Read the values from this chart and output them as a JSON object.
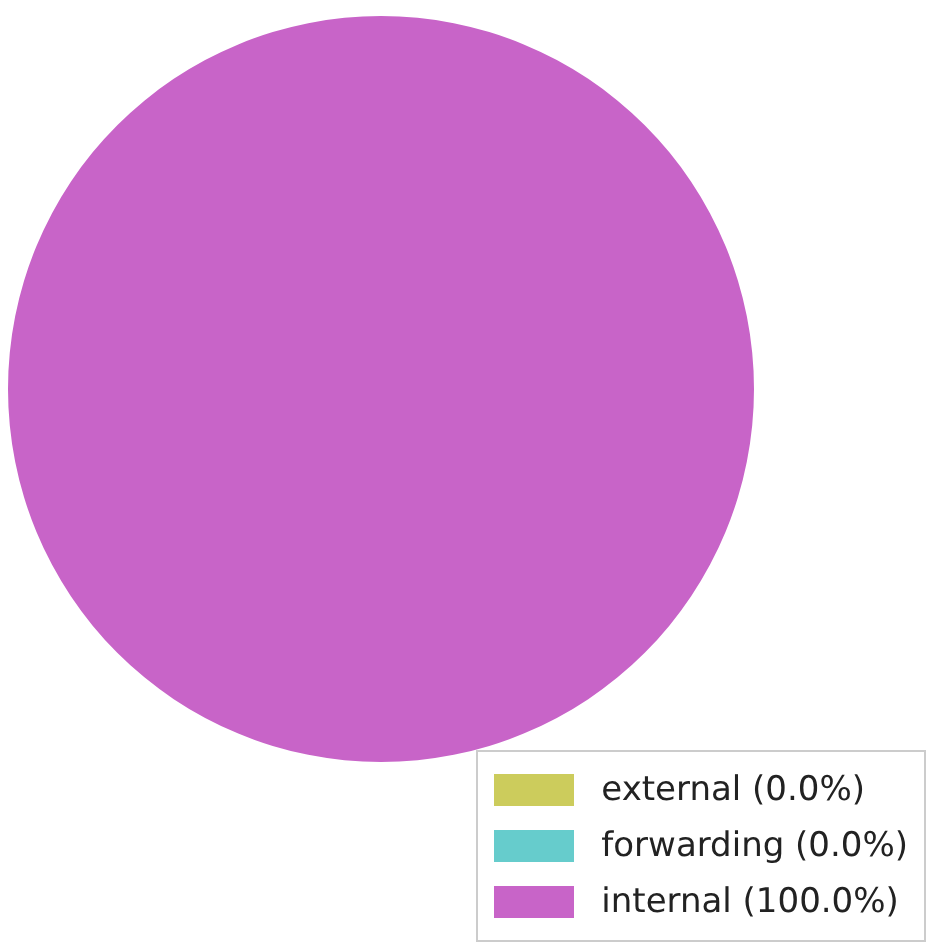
{
  "chart_data": {
    "type": "pie",
    "categories": [
      "external (0.0%)",
      "forwarding (0.0%)",
      "internal (100.0%)"
    ],
    "values": [
      0,
      0,
      100
    ],
    "colors": [
      "#cccc5c",
      "#66cccc",
      "#c864c8"
    ],
    "legend": "bottom right"
  }
}
